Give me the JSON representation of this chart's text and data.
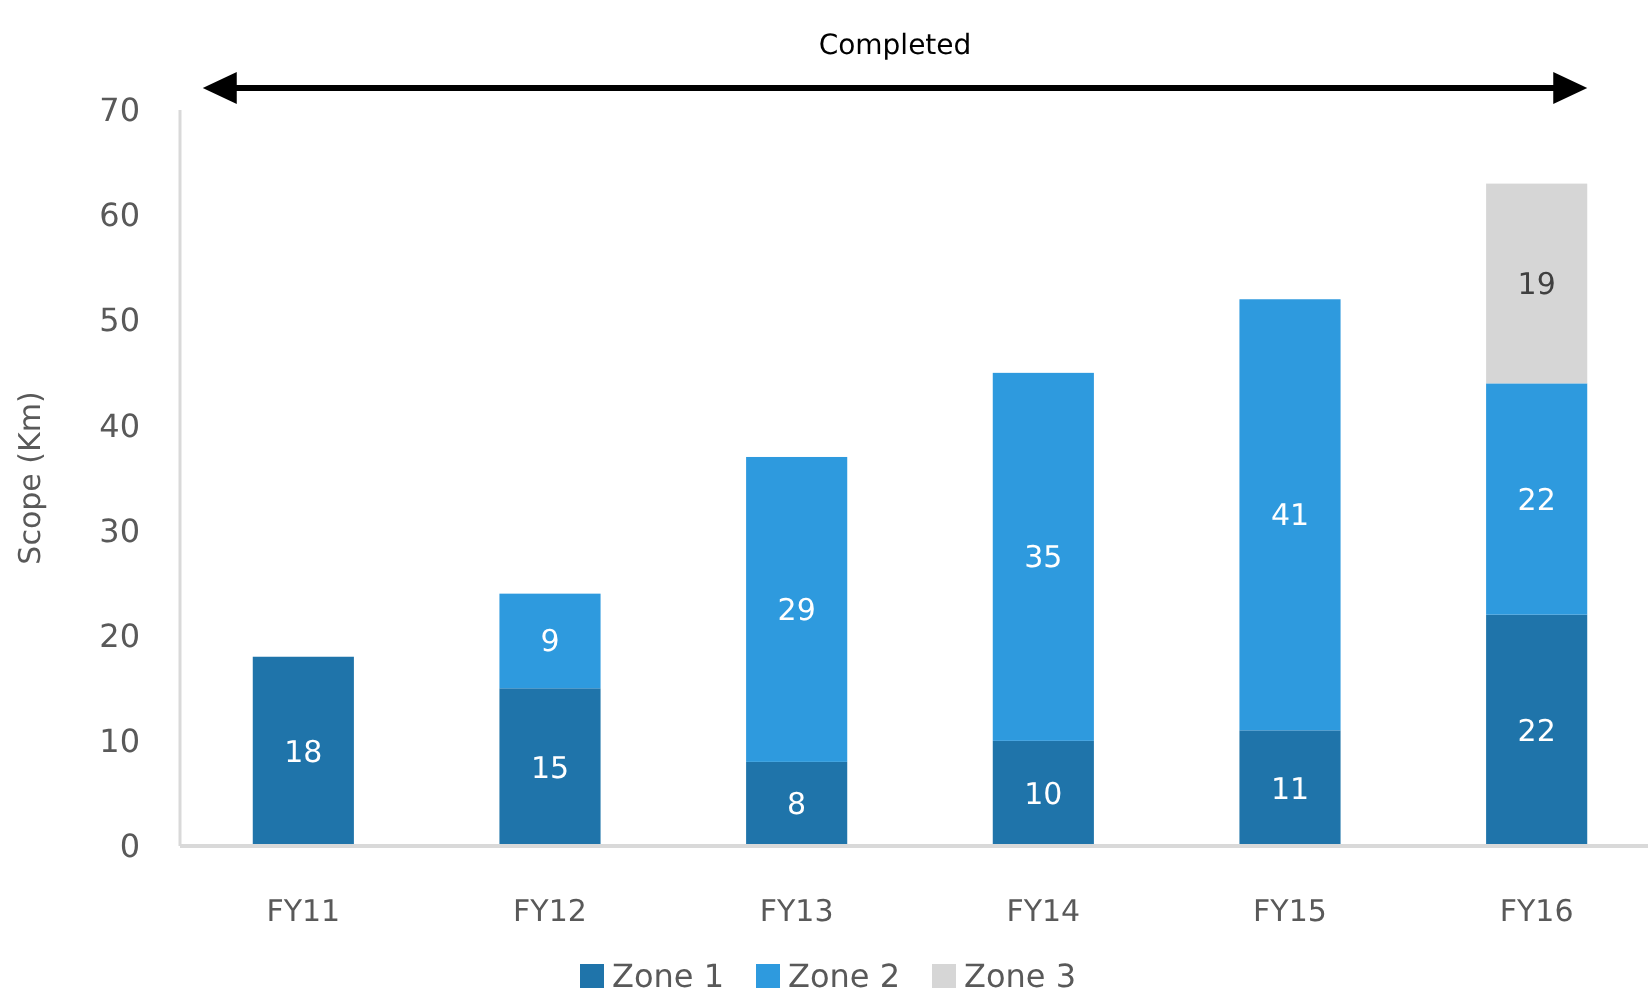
{
  "chart_data": {
    "type": "bar",
    "stacked": true,
    "categories": [
      "FY11",
      "FY12",
      "FY13",
      "FY14",
      "FY15",
      "FY16"
    ],
    "series": [
      {
        "name": "Zone 1",
        "color": "#1f74aa",
        "values": [
          18,
          15,
          8,
          10,
          11,
          22
        ]
      },
      {
        "name": "Zone 2",
        "color": "#2e9ade",
        "values": [
          null,
          9,
          29,
          35,
          41,
          22
        ]
      },
      {
        "name": "Zone 3",
        "color": "#d6d6d6",
        "values": [
          null,
          null,
          null,
          null,
          null,
          19
        ]
      }
    ],
    "ylabel": "Scope (Km)",
    "ylim": [
      0,
      70
    ],
    "yticks": [
      0,
      10,
      20,
      30,
      40,
      50,
      60,
      70
    ],
    "grid": false,
    "legend": "bottom",
    "data_labels": true,
    "annotations": [
      "Completed"
    ]
  }
}
